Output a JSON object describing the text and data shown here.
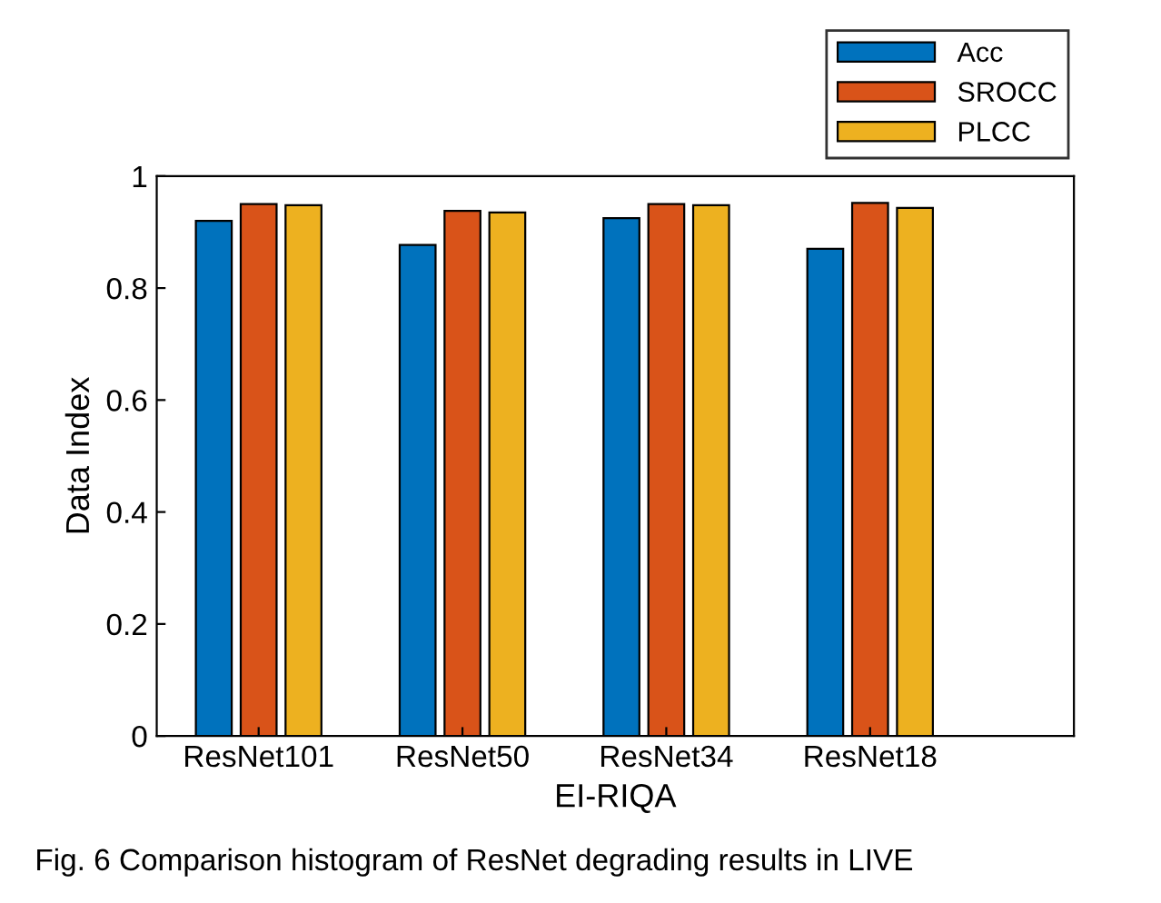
{
  "chart_data": {
    "type": "bar",
    "xlabel": "EI-RIQA",
    "ylabel": "Data Index",
    "categories": [
      "ResNet101",
      "ResNet50",
      "ResNet34",
      "ResNet18"
    ],
    "series": [
      {
        "name": "Acc",
        "color": "#0072bd",
        "values": [
          0.92,
          0.877,
          0.925,
          0.87
        ]
      },
      {
        "name": "SROCC",
        "color": "#d95319",
        "values": [
          0.95,
          0.938,
          0.95,
          0.952
        ]
      },
      {
        "name": "PLCC",
        "color": "#edb120",
        "values": [
          0.948,
          0.935,
          0.948,
          0.943
        ]
      }
    ],
    "ylim": [
      0,
      1
    ],
    "yticks": [
      0,
      0.2,
      0.4,
      0.6,
      0.8,
      1
    ],
    "grid": false,
    "legend": "top right",
    "annotations": [
      "Fig. 6 Comparison histogram of ResNet degrading results in LIVE"
    ]
  }
}
